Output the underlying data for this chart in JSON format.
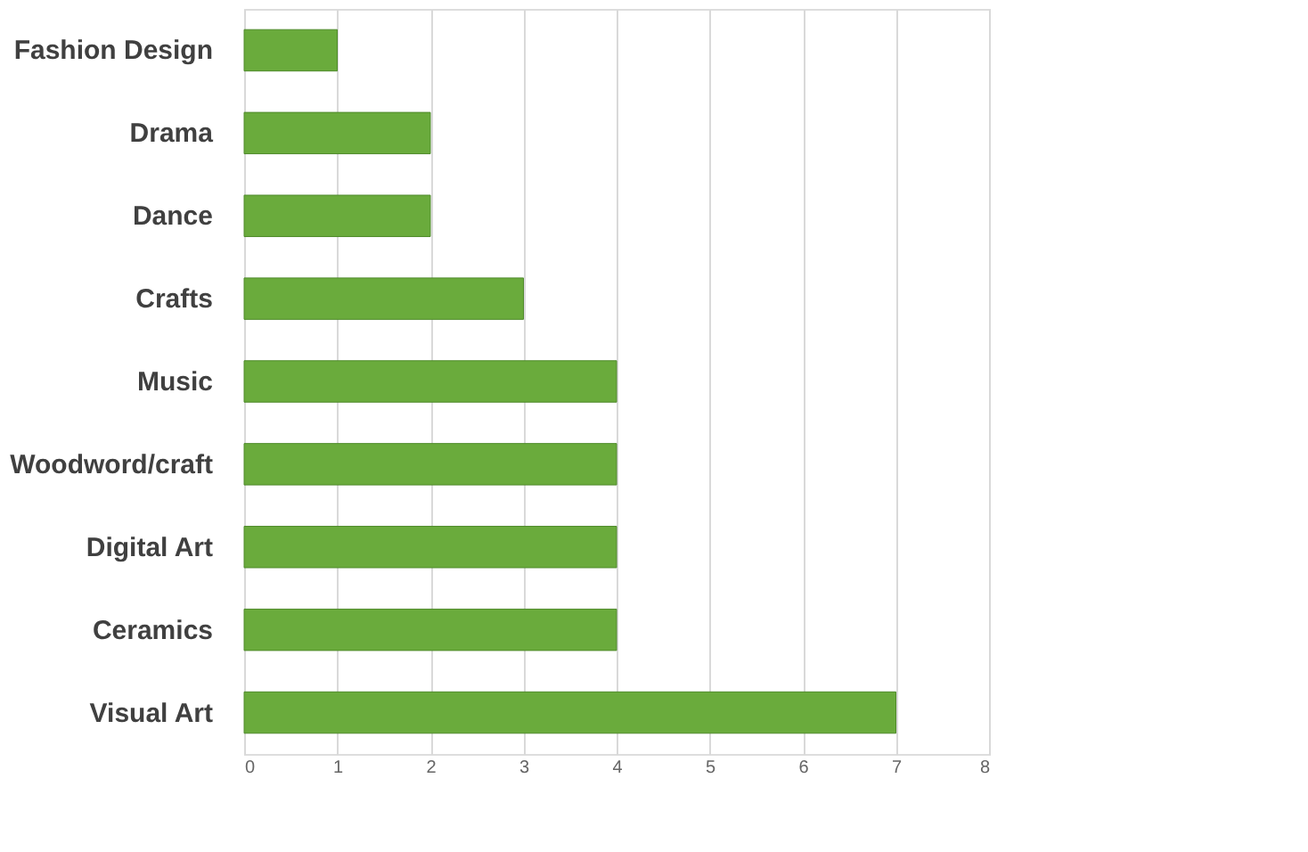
{
  "chart_data": {
    "type": "bar",
    "orientation": "horizontal",
    "categories": [
      "Fashion Design",
      "Drama",
      "Dance",
      "Crafts",
      "Music",
      "Woodword/craft",
      "Digital Art",
      "Ceramics",
      "Visual Art"
    ],
    "values": [
      1,
      2,
      2,
      3,
      4,
      4,
      4,
      4,
      7
    ],
    "color": "#6aab3c",
    "xlim": [
      0,
      8
    ],
    "xticks": [
      0,
      1,
      2,
      3,
      4,
      5,
      6,
      7,
      8
    ],
    "grid": "x"
  }
}
